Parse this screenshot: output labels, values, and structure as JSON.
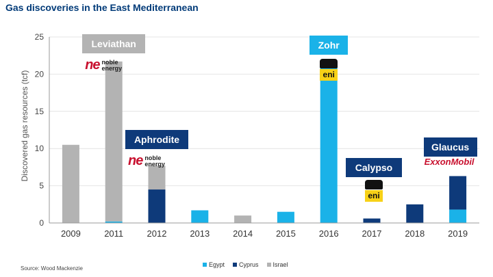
{
  "chart_data": {
    "type": "bar",
    "stacked": true,
    "title": "Gas discoveries in the East Mediterranean",
    "ylabel": "Discovered gas resources (tcf)",
    "xlabel": "",
    "ylim": [
      0,
      25
    ],
    "yticks": [
      0,
      5,
      10,
      15,
      20,
      25
    ],
    "categories": [
      "2009",
      "2011",
      "2012",
      "2013",
      "2014",
      "2015",
      "2016",
      "2017",
      "2018",
      "2019"
    ],
    "series": [
      {
        "name": "Egypt",
        "color": "#1ab2e8",
        "values": [
          0,
          0.2,
          0,
          1.7,
          0,
          1.5,
          21.5,
          0,
          0,
          1.8
        ]
      },
      {
        "name": "Cyprus",
        "color": "#0e3a7a",
        "values": [
          0,
          0,
          4.5,
          0,
          0,
          0,
          0,
          0.6,
          2.5,
          4.5
        ]
      },
      {
        "name": "Israel",
        "color": "#b3b3b3",
        "values": [
          10.5,
          21.5,
          3.2,
          0,
          1.0,
          0,
          0,
          0,
          0,
          0
        ]
      }
    ],
    "legend_position": "bottom-center",
    "grid": true,
    "annotations": [
      {
        "label": "Leviathan",
        "category": "2011",
        "color": "#b3b3b3",
        "logo": "noble-energy"
      },
      {
        "label": "Aphrodite",
        "category": "2012",
        "color": "#0e3a7a",
        "logo": "noble-energy"
      },
      {
        "label": "Zohr",
        "category": "2016",
        "color": "#1ab2e8",
        "logo": "eni"
      },
      {
        "label": "Calypso",
        "category": "2017",
        "color": "#0e3a7a",
        "logo": "eni"
      },
      {
        "label": "Glaucus",
        "category": "2019",
        "color": "#0e3a7a",
        "logo": "exxonmobil"
      }
    ]
  },
  "logos": {
    "noble_mark": "ne",
    "noble_line1": "noble",
    "noble_line2": "energy",
    "eni_text": "eni",
    "exxon_text": "ExxonMobil"
  },
  "source": "Source: Wood Mackenzie"
}
